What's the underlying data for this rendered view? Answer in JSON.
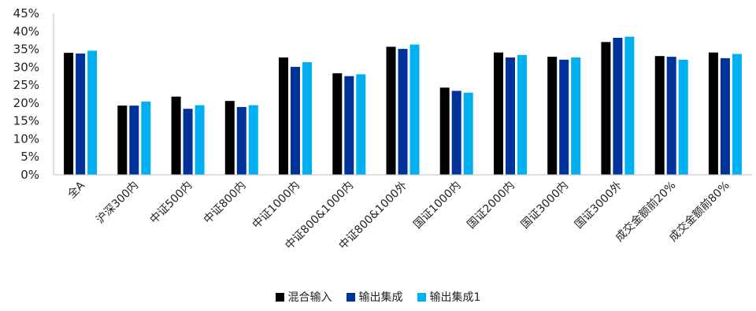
{
  "chart_data": {
    "type": "bar",
    "categories": [
      "全A",
      "沪深300内",
      "中证500内",
      "中证800内",
      "中证1000内",
      "中证800&1000内",
      "中证800&1000外",
      "国证1000内",
      "国证2000内",
      "国证3000内",
      "国证3000外",
      "成交金额前20%",
      "成交金额前80%"
    ],
    "series": [
      {
        "name": "混合输入",
        "color": "#000000",
        "values": [
          34.0,
          19.3,
          21.8,
          20.6,
          32.7,
          28.3,
          35.7,
          24.3,
          34.1,
          32.9,
          37.0,
          33.1,
          34.1
        ]
      },
      {
        "name": "输出集成",
        "color": "#003399",
        "values": [
          33.8,
          19.3,
          18.4,
          18.9,
          30.1,
          27.5,
          35.1,
          23.4,
          32.7,
          32.1,
          38.2,
          32.9,
          32.5
        ]
      },
      {
        "name": "输出集成1",
        "color": "#00B0F0",
        "values": [
          34.6,
          20.4,
          19.4,
          19.4,
          31.4,
          28.0,
          36.3,
          22.9,
          33.4,
          32.7,
          38.5,
          32.1,
          33.7
        ]
      }
    ],
    "ylim": [
      0,
      45
    ],
    "yticks": [
      "0%",
      "5%",
      "10%",
      "15%",
      "20%",
      "25%",
      "30%",
      "35%",
      "40%",
      "45%"
    ],
    "grid": false,
    "legend_position": "bottom"
  }
}
